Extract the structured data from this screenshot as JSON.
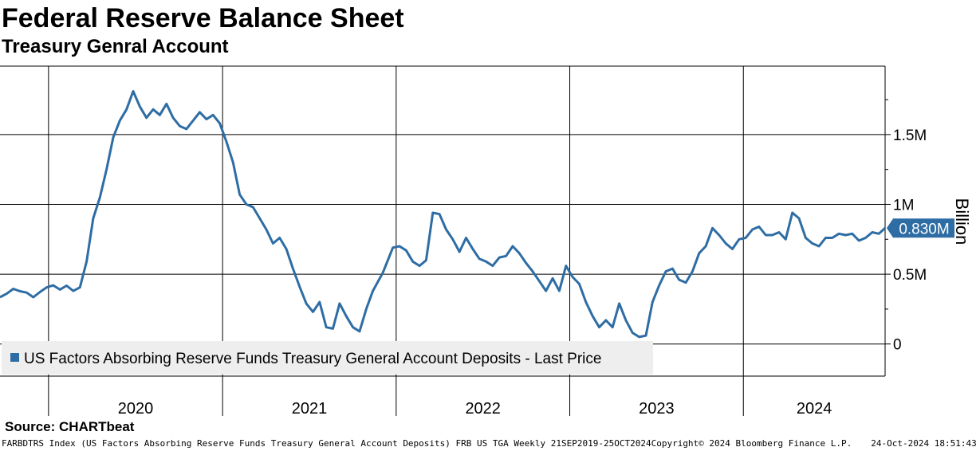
{
  "header": {
    "title": "Federal Reserve Balance Sheet",
    "subtitle": "Treasury Genral Account"
  },
  "footer": {
    "source": "Source: CHARTbeat",
    "description": "FARBDTRS Index (US Factors Absorbing Reserve Funds Treasury General Account Deposits) FRB US TGA  Weekly 21SEP2019-25OCT2024",
    "copyright": "Copyright© 2024 Bloomberg Finance L.P.",
    "timestamp": "24-Oct-2024 18:51:43"
  },
  "colors": {
    "series": "#2e6da4",
    "badge": "#2e6da4",
    "grid": "#000000",
    "legend_bg": "#eeeeee"
  },
  "chart_data": {
    "type": "line",
    "title": "Federal Reserve Balance Sheet",
    "subtitle": "Treasury Genral Account",
    "ylabel": "Billion",
    "xlabel": "",
    "x_range": [
      "2019-09-21",
      "2024-10-25"
    ],
    "ylim": [
      -230000,
      1990000
    ],
    "y_ticks": [
      {
        "value": 0,
        "label": "0"
      },
      {
        "value": 500000,
        "label": "0.5M"
      },
      {
        "value": 1000000,
        "label": "1M"
      },
      {
        "value": 1500000,
        "label": "1.5M"
      }
    ],
    "x_tick_labels": [
      "2020",
      "2021",
      "2022",
      "2023",
      "2024"
    ],
    "x_year_starts": [
      "2020-01-01",
      "2021-01-01",
      "2022-01-01",
      "2023-01-01",
      "2024-01-01",
      "2025-01-01"
    ],
    "grid": true,
    "legend_position": "bottom-left",
    "last_value_label": "0.830M",
    "series": [
      {
        "name": "US Factors Absorbing Reserve Funds Treasury General Account Deposits - Last Price",
        "points": [
          [
            "2019-09-21",
            335000
          ],
          [
            "2019-10-05",
            360000
          ],
          [
            "2019-10-19",
            395000
          ],
          [
            "2019-11-02",
            378000
          ],
          [
            "2019-11-16",
            368000
          ],
          [
            "2019-11-30",
            335000
          ],
          [
            "2019-12-14",
            372000
          ],
          [
            "2019-12-28",
            405000
          ],
          [
            "2020-01-11",
            420000
          ],
          [
            "2020-01-25",
            390000
          ],
          [
            "2020-02-08",
            418000
          ],
          [
            "2020-02-22",
            380000
          ],
          [
            "2020-03-07",
            405000
          ],
          [
            "2020-03-21",
            590000
          ],
          [
            "2020-04-04",
            900000
          ],
          [
            "2020-04-18",
            1050000
          ],
          [
            "2020-05-02",
            1250000
          ],
          [
            "2020-05-16",
            1480000
          ],
          [
            "2020-05-30",
            1600000
          ],
          [
            "2020-06-13",
            1680000
          ],
          [
            "2020-06-27",
            1810000
          ],
          [
            "2020-07-11",
            1700000
          ],
          [
            "2020-07-25",
            1620000
          ],
          [
            "2020-08-08",
            1680000
          ],
          [
            "2020-08-22",
            1640000
          ],
          [
            "2020-09-05",
            1720000
          ],
          [
            "2020-09-19",
            1620000
          ],
          [
            "2020-10-03",
            1560000
          ],
          [
            "2020-10-17",
            1540000
          ],
          [
            "2020-10-31",
            1600000
          ],
          [
            "2020-11-14",
            1660000
          ],
          [
            "2020-11-28",
            1610000
          ],
          [
            "2020-12-12",
            1640000
          ],
          [
            "2020-12-26",
            1580000
          ],
          [
            "2021-01-09",
            1450000
          ],
          [
            "2021-01-23",
            1300000
          ],
          [
            "2021-02-06",
            1070000
          ],
          [
            "2021-02-20",
            1000000
          ],
          [
            "2021-03-06",
            980000
          ],
          [
            "2021-03-20",
            900000
          ],
          [
            "2021-04-03",
            820000
          ],
          [
            "2021-04-17",
            720000
          ],
          [
            "2021-05-01",
            760000
          ],
          [
            "2021-05-15",
            680000
          ],
          [
            "2021-05-29",
            540000
          ],
          [
            "2021-06-12",
            410000
          ],
          [
            "2021-06-26",
            290000
          ],
          [
            "2021-07-10",
            230000
          ],
          [
            "2021-07-24",
            300000
          ],
          [
            "2021-08-07",
            120000
          ],
          [
            "2021-08-21",
            110000
          ],
          [
            "2021-09-04",
            290000
          ],
          [
            "2021-09-18",
            200000
          ],
          [
            "2021-10-02",
            120000
          ],
          [
            "2021-10-16",
            90000
          ],
          [
            "2021-10-30",
            250000
          ],
          [
            "2021-11-13",
            380000
          ],
          [
            "2021-12-04",
            510000
          ],
          [
            "2021-12-25",
            690000
          ],
          [
            "2022-01-08",
            700000
          ],
          [
            "2022-01-22",
            670000
          ],
          [
            "2022-02-05",
            590000
          ],
          [
            "2022-02-19",
            560000
          ],
          [
            "2022-03-05",
            600000
          ],
          [
            "2022-03-19",
            940000
          ],
          [
            "2022-04-02",
            930000
          ],
          [
            "2022-04-16",
            820000
          ],
          [
            "2022-04-30",
            750000
          ],
          [
            "2022-05-14",
            660000
          ],
          [
            "2022-05-28",
            760000
          ],
          [
            "2022-06-11",
            680000
          ],
          [
            "2022-06-25",
            610000
          ],
          [
            "2022-07-09",
            590000
          ],
          [
            "2022-07-23",
            560000
          ],
          [
            "2022-08-06",
            620000
          ],
          [
            "2022-08-20",
            630000
          ],
          [
            "2022-09-03",
            700000
          ],
          [
            "2022-09-17",
            650000
          ],
          [
            "2022-10-01",
            580000
          ],
          [
            "2022-10-15",
            520000
          ],
          [
            "2022-10-29",
            450000
          ],
          [
            "2022-11-12",
            380000
          ],
          [
            "2022-11-26",
            470000
          ],
          [
            "2022-12-10",
            380000
          ],
          [
            "2022-12-24",
            560000
          ],
          [
            "2023-01-07",
            480000
          ],
          [
            "2023-01-21",
            430000
          ],
          [
            "2023-02-04",
            300000
          ],
          [
            "2023-02-18",
            200000
          ],
          [
            "2023-03-04",
            120000
          ],
          [
            "2023-03-18",
            170000
          ],
          [
            "2023-04-01",
            120000
          ],
          [
            "2023-04-15",
            290000
          ],
          [
            "2023-04-29",
            170000
          ],
          [
            "2023-05-13",
            80000
          ],
          [
            "2023-05-27",
            50000
          ],
          [
            "2023-06-10",
            60000
          ],
          [
            "2023-06-24",
            300000
          ],
          [
            "2023-07-08",
            420000
          ],
          [
            "2023-07-22",
            520000
          ],
          [
            "2023-08-05",
            540000
          ],
          [
            "2023-08-19",
            460000
          ],
          [
            "2023-09-02",
            440000
          ],
          [
            "2023-09-16",
            520000
          ],
          [
            "2023-09-30",
            650000
          ],
          [
            "2023-10-14",
            700000
          ],
          [
            "2023-10-28",
            830000
          ],
          [
            "2023-11-11",
            780000
          ],
          [
            "2023-11-25",
            720000
          ],
          [
            "2023-12-09",
            680000
          ],
          [
            "2023-12-23",
            750000
          ],
          [
            "2024-01-06",
            760000
          ],
          [
            "2024-01-20",
            820000
          ],
          [
            "2024-02-03",
            840000
          ],
          [
            "2024-02-17",
            780000
          ],
          [
            "2024-03-02",
            780000
          ],
          [
            "2024-03-16",
            800000
          ],
          [
            "2024-03-30",
            750000
          ],
          [
            "2024-04-13",
            940000
          ],
          [
            "2024-04-27",
            900000
          ],
          [
            "2024-05-11",
            760000
          ],
          [
            "2024-05-25",
            720000
          ],
          [
            "2024-06-08",
            700000
          ],
          [
            "2024-06-22",
            760000
          ],
          [
            "2024-07-06",
            760000
          ],
          [
            "2024-07-20",
            790000
          ],
          [
            "2024-08-03",
            780000
          ],
          [
            "2024-08-17",
            790000
          ],
          [
            "2024-08-31",
            740000
          ],
          [
            "2024-09-14",
            760000
          ],
          [
            "2024-09-28",
            800000
          ],
          [
            "2024-10-12",
            790000
          ],
          [
            "2024-10-25",
            830000
          ]
        ]
      }
    ]
  }
}
